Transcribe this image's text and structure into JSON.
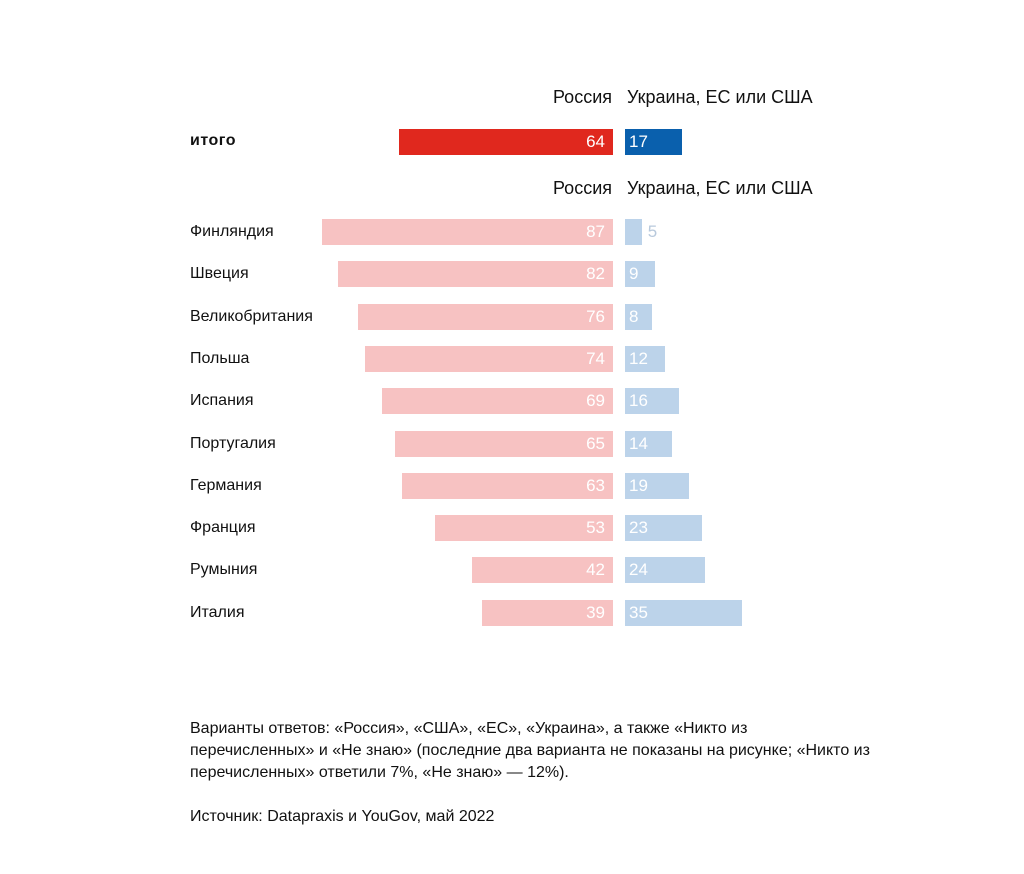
{
  "chart_data": {
    "type": "bar",
    "orientation": "horizontal-diverging",
    "legend_left": "Россия",
    "legend_right": "Украина, ЕС или США",
    "total": {
      "category": "итого",
      "russia": 64,
      "ukraine_eu_us": 17
    },
    "categories": [
      "Финляндия",
      "Швеция",
      "Великобритания",
      "Польша",
      "Испания",
      "Португалия",
      "Германия",
      "Франция",
      "Румыния",
      "Италия"
    ],
    "series": [
      {
        "name": "Россия",
        "values": [
          87,
          82,
          76,
          74,
          69,
          65,
          63,
          53,
          42,
          39
        ]
      },
      {
        "name": "Украина, ЕС или США",
        "values": [
          5,
          9,
          8,
          12,
          16,
          14,
          19,
          23,
          24,
          35
        ]
      }
    ],
    "colors": {
      "total_left": "#e0281e",
      "total_right": "#0a60ad",
      "left": "#f7c2c2",
      "right": "#bcd3ea",
      "outside_label": "#b8c9dc"
    }
  },
  "notes": {
    "answers": "Варианты ответов: «Россия», «США», «ЕС», «Украина», а также «Никто из перечисленных» и «Не знаю» (последние два варианта не показаны на рисунке; «Никто из перечисленных» ответили 7%, «Не знаю» — 12%).",
    "source": "Источник: Datapraxis и YouGov, май 2022"
  }
}
